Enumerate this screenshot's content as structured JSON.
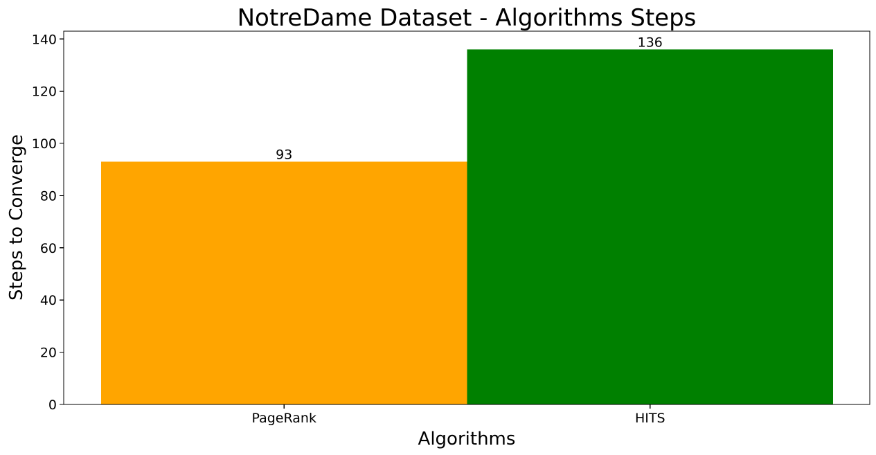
{
  "chart_data": {
    "type": "bar",
    "title": "NotreDame Dataset - Algorithms Steps",
    "xlabel": "Algorithms",
    "ylabel": "Steps to Converge",
    "categories": [
      "PageRank",
      "HITS"
    ],
    "values": [
      93,
      136
    ],
    "value_labels": [
      "93",
      "136"
    ],
    "colors": [
      "#ffa500",
      "#008000"
    ],
    "ylim": [
      0,
      143
    ],
    "yticks": [
      0,
      20,
      40,
      60,
      80,
      100,
      120,
      140
    ],
    "ytick_labels": [
      "0",
      "20",
      "40",
      "60",
      "80",
      "100",
      "120",
      "140"
    ],
    "grid": false,
    "legend": "none"
  }
}
